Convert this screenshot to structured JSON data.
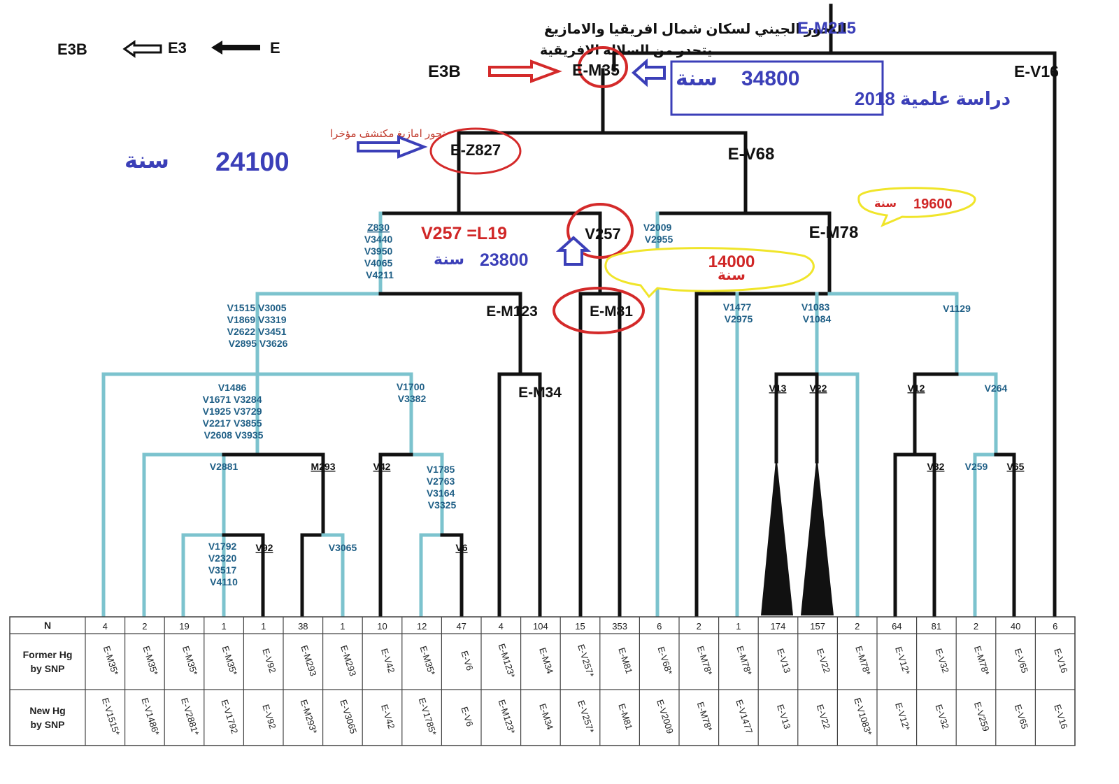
{
  "colors": {
    "black_branch": "#111111",
    "teal_branch": "#7cc3ce",
    "red_highlight": "#d42a2a",
    "yellow_highlight": "#f0e52a",
    "blue_text": "#3b3fb8",
    "snp_text": "#1f5f86"
  },
  "header": {
    "title_ar": "التحور الجيني لسكان شمال افريقيا والامازيغ",
    "lineage_ar": "يتحدر من السلالة الافريقية",
    "lineage_e": "E",
    "lineage_e3": "E3",
    "lineage_e3b": "E3B"
  },
  "annotations": {
    "e3b_label": "E3B",
    "em35_age_years": "34800",
    "em35_age_word": "سنة",
    "em35_study": "دراسة علمية 2018",
    "z827_note_ar": "تحور امازيغ مكتشف مؤخرا",
    "z827_age_years": "24100",
    "z827_age_word": "سنة",
    "v257_equivalence": "V257 =L19",
    "v257_age_years": "23800",
    "v257_age_word": "سنة",
    "em81_age_years": "14000",
    "em81_age_word": "سنة",
    "em78_age_years": "19600",
    "em78_age_word": "سنة"
  },
  "nodes": {
    "em215": "E-M215",
    "em35": "E-M35",
    "ev16": "E-V16",
    "ez827": "E-Z827",
    "ev68": "E-V68",
    "v257": "V257",
    "em78": "E-M78",
    "em123": "E-M123",
    "em81": "E-M81",
    "em34": "E-M34"
  },
  "snp_labels": {
    "z830": [
      "Z830",
      "V3440",
      "V3950",
      "V4065",
      "V4211"
    ],
    "v2009": [
      "V2009",
      "V2955"
    ],
    "v1515": [
      "V1515 V3005",
      "V1869 V3319",
      "V2622 V3451",
      "V2895 V3626"
    ],
    "v1486": [
      "V1486",
      "V1671 V3284",
      "V1925 V3729",
      "V2217 V3855",
      "V2608 V3935"
    ],
    "v1700": [
      "V1700",
      "V3382"
    ],
    "v2881": "V2881",
    "m293": "M293",
    "v42": "V42",
    "v1785": [
      "V1785",
      "V2763",
      "V3164",
      "V3325"
    ],
    "v1792": [
      "V1792",
      "V2320",
      "V3517",
      "V4110"
    ],
    "v92": "V92",
    "v3065": "V3065",
    "v6": "V6",
    "v1477": [
      "V1477",
      "V2975"
    ],
    "v1083": [
      "V1083",
      "V1084"
    ],
    "v1129": "V1129",
    "v13": "V13",
    "v22": "V22",
    "v12": "V12",
    "v264": "V264",
    "v32": "V32",
    "v259": "V259",
    "v65": "V65"
  },
  "table": {
    "row_labels": [
      "N",
      "Former Hg\nby SNP",
      "New Hg\nby SNP"
    ],
    "columns": [
      {
        "n": "4",
        "former": "E-M35*",
        "new": "E-V1515*"
      },
      {
        "n": "2",
        "former": "E-M35*",
        "new": "E-V1486*"
      },
      {
        "n": "19",
        "former": "E-M35*",
        "new": "E-V2881*"
      },
      {
        "n": "1",
        "former": "E-M35*",
        "new": "E-V1792"
      },
      {
        "n": "1",
        "former": "E-V92",
        "new": "E-V92"
      },
      {
        "n": "38",
        "former": "E-M293",
        "new": "E-M293*"
      },
      {
        "n": "1",
        "former": "E-M293",
        "new": "E-V3065"
      },
      {
        "n": "10",
        "former": "E-V42",
        "new": "E-V42"
      },
      {
        "n": "12",
        "former": "E-M35*",
        "new": "E-V1785*"
      },
      {
        "n": "47",
        "former": "E-V6",
        "new": "E-V6"
      },
      {
        "n": "4",
        "former": "E-M123*",
        "new": "E-M123*"
      },
      {
        "n": "104",
        "former": "E-M34",
        "new": "E-M34"
      },
      {
        "n": "15",
        "former": "E-V257*",
        "new": "E-V257*"
      },
      {
        "n": "353",
        "former": "E-M81",
        "new": "E-M81"
      },
      {
        "n": "6",
        "former": "E-V68*",
        "new": "E-V2009"
      },
      {
        "n": "2",
        "former": "E-M78*",
        "new": "E-M78*"
      },
      {
        "n": "1",
        "former": "E-M78*",
        "new": "E-V1477"
      },
      {
        "n": "174",
        "former": "E-V13",
        "new": "E-V13"
      },
      {
        "n": "157",
        "former": "E-V22",
        "new": "E-V22"
      },
      {
        "n": "2",
        "former": "E-M78*",
        "new": "E-V1083*"
      },
      {
        "n": "64",
        "former": "E-V12*",
        "new": "E-V12*"
      },
      {
        "n": "81",
        "former": "E-V32",
        "new": "E-V32"
      },
      {
        "n": "2",
        "former": "E-M78*",
        "new": "E-V259"
      },
      {
        "n": "40",
        "former": "E-V65",
        "new": "E-V65"
      },
      {
        "n": "6",
        "former": "E-V16",
        "new": "E-V16"
      }
    ]
  }
}
